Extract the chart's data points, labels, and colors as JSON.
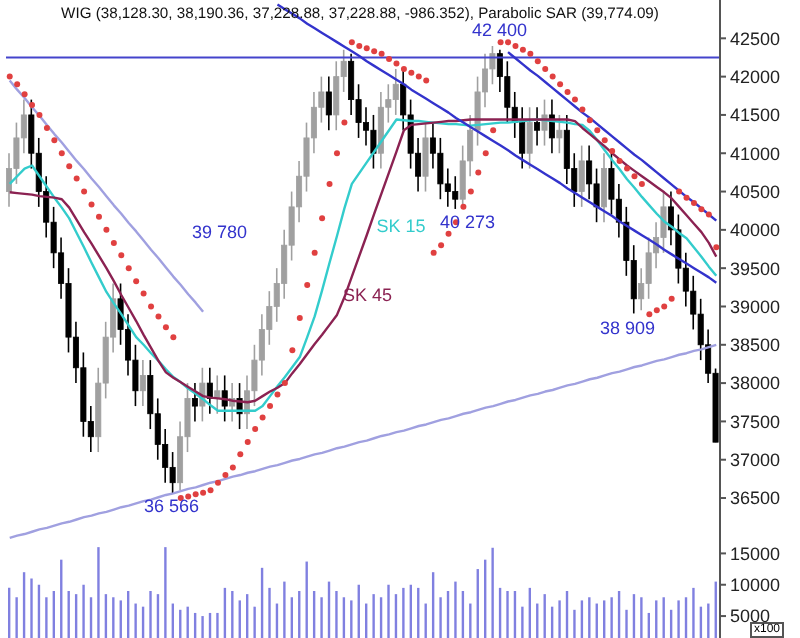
{
  "chart_data": [
    {
      "type": "candlestick",
      "title": "WIG (38,128.30, 38,190.36, 37,228.88, 37,228.88, -986.352), Parabolic SAR (39,774.09)",
      "colors": [
        "#a0a0a0",
        "#a0a0a0",
        "#a0a0a0",
        "#000000",
        "#000000",
        "#000000",
        "#000000",
        "#000000",
        "#000000",
        "#000000",
        "#000000",
        "#000000",
        "#a0a0a0",
        "#a0a0a0",
        "#a0a0a0",
        "#000000",
        "#000000",
        "#000000",
        "#a0a0a0",
        "#000000",
        "#000000",
        "#000000",
        "#000000",
        "#a0a0a0",
        "#a0a0a0",
        "#000000",
        "#a0a0a0",
        "#000000",
        "#a0a0a0",
        "#000000",
        "#a0a0a0",
        "#000000",
        "#a0a0a0",
        "#a0a0a0",
        "#a0a0a0",
        "#a0a0a0",
        "#a0a0a0",
        "#a0a0a0",
        "#a0a0a0",
        "#a0a0a0",
        "#a0a0a0",
        "#a0a0a0",
        "#a0a0a0",
        "#000000",
        "#a0a0a0",
        "#a0a0a0",
        "#000000",
        "#000000",
        "#000000",
        "#000000",
        "#a0a0a0",
        "#a0a0a0",
        "#a0a0a0",
        "#000000",
        "#000000",
        "#000000",
        "#a0a0a0",
        "#000000",
        "#000000",
        "#000000",
        "#000000",
        "#a0a0a0",
        "#a0a0a0",
        "#a0a0a0",
        "#a0a0a0",
        "#a0a0a0",
        "#000000",
        "#000000",
        "#000000",
        "#000000",
        "#a0a0a0",
        "#000000",
        "#a0a0a0",
        "#000000",
        "#a0a0a0",
        "#000000",
        "#000000",
        "#a0a0a0",
        "#000000",
        "#000000",
        "#a0a0a0",
        "#000000",
        "#000000",
        "#000000",
        "#000000",
        "#a0a0a0",
        "#a0a0a0",
        "#a0a0a0",
        "#a0a0a0",
        "#000000",
        "#000000",
        "#000000",
        "#000000",
        "#000000",
        "#000000",
        "#000000"
      ],
      "categories": [
        null,
        null,
        null,
        null,
        null,
        null,
        null,
        null,
        null,
        null,
        null,
        null,
        null,
        null,
        null,
        null,
        null,
        null,
        null,
        null,
        null,
        null,
        null,
        null,
        null,
        null,
        null,
        null,
        null,
        null,
        null,
        null,
        null,
        null,
        null,
        null,
        null,
        null,
        null,
        null,
        null,
        null,
        null,
        null,
        null,
        null,
        null,
        null,
        null,
        null,
        null,
        null,
        null,
        null,
        null,
        null,
        null,
        null,
        null,
        null,
        null,
        null,
        null,
        null,
        null,
        null,
        null,
        null,
        null,
        null,
        null,
        null,
        null,
        null,
        null,
        null,
        null,
        null,
        null,
        null,
        null,
        null,
        null,
        null,
        null,
        null,
        null,
        null,
        null,
        null,
        null,
        null,
        null,
        null,
        null,
        null
      ],
      "ohlc": [
        [
          40500,
          41000,
          40300,
          40800
        ],
        [
          40800,
          41400,
          40600,
          41200
        ],
        [
          41200,
          41700,
          41000,
          41500
        ],
        [
          41500,
          41700,
          40800,
          41000
        ],
        [
          41000,
          41200,
          40300,
          40500
        ],
        [
          40500,
          40700,
          39900,
          40100
        ],
        [
          40100,
          40300,
          39500,
          39700
        ],
        [
          39700,
          39900,
          39100,
          39300
        ],
        [
          39300,
          39500,
          38400,
          38600
        ],
        [
          38600,
          38800,
          38000,
          38200
        ],
        [
          38200,
          38400,
          37300,
          37500
        ],
        [
          37500,
          37700,
          37100,
          37300
        ],
        [
          37300,
          38200,
          37100,
          38000
        ],
        [
          38000,
          38800,
          37800,
          38600
        ],
        [
          38600,
          39300,
          38400,
          39100
        ],
        [
          39100,
          39300,
          38500,
          38700
        ],
        [
          38700,
          38900,
          38100,
          38300
        ],
        [
          38300,
          38500,
          37700,
          37900
        ],
        [
          37900,
          38300,
          37700,
          38100
        ],
        [
          38100,
          38300,
          37400,
          37600
        ],
        [
          37600,
          37800,
          37000,
          37200
        ],
        [
          37200,
          37400,
          36700,
          36900
        ],
        [
          36900,
          37100,
          36566,
          36700
        ],
        [
          36700,
          37500,
          36600,
          37300
        ],
        [
          37300,
          38000,
          37100,
          37800
        ],
        [
          37800,
          38000,
          37500,
          37700
        ],
        [
          37700,
          38200,
          37500,
          38000
        ],
        [
          38000,
          38200,
          37600,
          37800
        ],
        [
          37800,
          38100,
          37600,
          37900
        ],
        [
          37900,
          38100,
          37500,
          37700
        ],
        [
          37700,
          38000,
          37500,
          37800
        ],
        [
          37800,
          38000,
          37400,
          37600
        ],
        [
          37600,
          38100,
          37400,
          37900
        ],
        [
          37900,
          38500,
          37700,
          38300
        ],
        [
          38300,
          38900,
          38100,
          38700
        ],
        [
          38700,
          39200,
          38500,
          39000
        ],
        [
          39000,
          39500,
          38800,
          39300
        ],
        [
          39300,
          40000,
          39100,
          39800
        ],
        [
          39800,
          40500,
          39600,
          40300
        ],
        [
          40300,
          40900,
          40100,
          40700
        ],
        [
          40700,
          41400,
          40500,
          41200
        ],
        [
          41200,
          41800,
          41000,
          41600
        ],
        [
          41600,
          42000,
          41400,
          41800
        ],
        [
          41800,
          42000,
          41300,
          41500
        ],
        [
          41500,
          42200,
          41300,
          42000
        ],
        [
          42000,
          42350,
          41800,
          42200
        ],
        [
          42200,
          42300,
          41500,
          41700
        ],
        [
          41700,
          41900,
          41200,
          41400
        ],
        [
          41400,
          41600,
          41100,
          41300
        ],
        [
          41300,
          41500,
          40800,
          41000
        ],
        [
          41000,
          41800,
          40800,
          41600
        ],
        [
          41600,
          41900,
          41400,
          41700
        ],
        [
          41700,
          42100,
          41500,
          41900
        ],
        [
          41900,
          42100,
          41300,
          41500
        ],
        [
          41500,
          41700,
          40800,
          41000
        ],
        [
          41000,
          41200,
          40500,
          40700
        ],
        [
          40700,
          41400,
          40500,
          41200
        ],
        [
          41200,
          41400,
          40800,
          41000
        ],
        [
          41000,
          41200,
          40400,
          40600
        ],
        [
          40600,
          40800,
          40300,
          40500
        ],
        [
          40500,
          40700,
          40273,
          40400
        ],
        [
          40400,
          41100,
          40300,
          40900
        ],
        [
          40900,
          41500,
          40700,
          41300
        ],
        [
          41300,
          42000,
          41100,
          41800
        ],
        [
          41800,
          42300,
          41600,
          42100
        ],
        [
          42100,
          42400,
          41900,
          42300
        ],
        [
          42300,
          42350,
          41800,
          42000
        ],
        [
          42000,
          42200,
          41400,
          41600
        ],
        [
          41600,
          41800,
          41200,
          41400
        ],
        [
          41400,
          41600,
          40800,
          41000
        ],
        [
          41000,
          41600,
          40800,
          41400
        ],
        [
          41400,
          41600,
          41100,
          41300
        ],
        [
          41300,
          41700,
          41100,
          41500
        ],
        [
          41500,
          41700,
          41000,
          41200
        ],
        [
          41200,
          41500,
          41000,
          41300
        ],
        [
          41300,
          41500,
          40600,
          40800
        ],
        [
          40800,
          41000,
          40300,
          40500
        ],
        [
          40500,
          41100,
          40300,
          40900
        ],
        [
          40900,
          41100,
          40400,
          40600
        ],
        [
          40600,
          40800,
          40100,
          40300
        ],
        [
          40300,
          41000,
          40100,
          40800
        ],
        [
          40800,
          41000,
          40200,
          40400
        ],
        [
          40400,
          40600,
          39900,
          40100
        ],
        [
          40100,
          40300,
          39400,
          39600
        ],
        [
          39600,
          39800,
          38909,
          39100
        ],
        [
          39100,
          39500,
          38950,
          39300
        ],
        [
          39300,
          39900,
          39100,
          39700
        ],
        [
          39700,
          40100,
          39500,
          39900
        ],
        [
          39900,
          40500,
          39700,
          40300
        ],
        [
          40300,
          40500,
          39800,
          40000
        ],
        [
          40000,
          40200,
          39300,
          39500
        ],
        [
          39500,
          39700,
          39000,
          39200
        ],
        [
          39200,
          39400,
          38700,
          38900
        ],
        [
          38900,
          39100,
          38300,
          38500
        ],
        [
          38500,
          38700,
          38000,
          38128.3
        ],
        [
          38128.3,
          38190.36,
          37228.88,
          37228.88
        ]
      ],
      "series": [
        {
          "name": "SK 15",
          "type": "line",
          "color": "#33cccc",
          "values": [
            40600,
            40700,
            40800,
            40840,
            40700,
            40560,
            40420,
            40290,
            40150,
            39960,
            39770,
            39570,
            39380,
            39190,
            39040,
            38900,
            38750,
            38600,
            38500,
            38390,
            38290,
            38180,
            38080,
            38010,
            37930,
            37860,
            37790,
            37710,
            37640,
            37640,
            37640,
            37640,
            37640,
            37640,
            37700,
            37830,
            37960,
            38080,
            38210,
            38340,
            38600,
            38870,
            39210,
            39570,
            39920,
            40280,
            40600,
            40740,
            40880,
            41020,
            41160,
            41300,
            41440,
            41430,
            41420,
            41420,
            41410,
            41400,
            41390,
            41380,
            41380,
            41370,
            41360,
            41370,
            41380,
            41390,
            41400,
            41400,
            41410,
            41420,
            41430,
            41440,
            41430,
            41420,
            41410,
            41400,
            41380,
            41370,
            41290,
            41170,
            41040,
            40910,
            40790,
            40660,
            40550,
            40430,
            40320,
            40210,
            40110,
            40040,
            39960,
            39890,
            39770,
            39650,
            39520,
            39400
          ]
        },
        {
          "name": "SK 45",
          "type": "line",
          "color": "#8b2252",
          "values": [
            40490,
            40480,
            40470,
            40460,
            40440,
            40430,
            40420,
            40400,
            40290,
            40130,
            39970,
            39820,
            39660,
            39500,
            39330,
            39150,
            38980,
            38810,
            38630,
            38460,
            38290,
            38140,
            38070,
            38010,
            37950,
            37890,
            37830,
            37810,
            37800,
            37790,
            37770,
            37760,
            37750,
            37770,
            37830,
            37890,
            37940,
            38000,
            38130,
            38250,
            38380,
            38510,
            38630,
            38760,
            38890,
            39120,
            39390,
            39660,
            39930,
            40210,
            40480,
            40750,
            41020,
            41300,
            41370,
            41380,
            41390,
            41400,
            41410,
            41420,
            41420,
            41430,
            41440,
            41440,
            41440,
            41440,
            41440,
            41440,
            41440,
            41440,
            41440,
            41440,
            41440,
            41440,
            41440,
            41440,
            41420,
            41330,
            41250,
            41170,
            41090,
            41000,
            40920,
            40840,
            40770,
            40700,
            40630,
            40560,
            40490,
            40410,
            40300,
            40190,
            40080,
            39970,
            39830,
            39650
          ]
        },
        {
          "type": "scatter",
          "marker": "circle",
          "color": "#e04040",
          "values": [
            42000,
            41900,
            41770,
            41630,
            41500,
            41330,
            41170,
            41000,
            40830,
            40670,
            40500,
            40330,
            40170,
            40000,
            39830,
            39670,
            39500,
            39330,
            39170,
            39000,
            38870,
            38730,
            38600,
            36500,
            36520,
            36550,
            36570,
            36600,
            36700,
            36800,
            36900,
            37070,
            37230,
            37400,
            37550,
            37700,
            37850,
            38000,
            38430,
            38850,
            39280,
            39700,
            40150,
            40600,
            41000,
            41400,
            42450,
            42400,
            42370,
            42330,
            42300,
            42230,
            42170,
            42100,
            42050,
            42000,
            41950,
            39700,
            39800,
            39950,
            40100,
            40300,
            40500,
            40750,
            41000,
            41300,
            42450,
            42450,
            42400,
            42350,
            42300,
            42200,
            42100,
            42000,
            41900,
            41800,
            41700,
            41570,
            41430,
            41300,
            41170,
            41030,
            40900,
            40800,
            40700,
            40600,
            38900,
            38950,
            39000,
            39100,
            40500,
            40420,
            40350,
            40270,
            40200,
            39774.09
          ]
        },
        {
          "type": "line",
          "color": "#a0a0e0",
          "values": [
            41950,
            41830,
            41720,
            41600,
            41490,
            41370,
            41250,
            41140,
            41020,
            40900,
            40790,
            40670,
            40560,
            40440,
            40320,
            40210,
            40090,
            39980,
            39860,
            39740,
            39630,
            39510,
            39390,
            39280,
            39160,
            39050,
            38930,
            null,
            null,
            null,
            null,
            null,
            null,
            null,
            null,
            null,
            null,
            null,
            null,
            null,
            null,
            null,
            null,
            null,
            null,
            null,
            null,
            null,
            null,
            null,
            null,
            null,
            null,
            null,
            null,
            null,
            null,
            null,
            null,
            null,
            null,
            null,
            null,
            null,
            null,
            null,
            null,
            null,
            null,
            null,
            null,
            null,
            null,
            null,
            null,
            null,
            null,
            null,
            null,
            null,
            null,
            null,
            null,
            null,
            null,
            null,
            null,
            null,
            null,
            null,
            null,
            null,
            null,
            null,
            null,
            null
          ]
        },
        {
          "type": "line",
          "color": "#a0a0e0",
          "values": [
            35980,
            36010,
            36030,
            36060,
            36090,
            36110,
            36140,
            36170,
            36190,
            36220,
            36250,
            36270,
            36300,
            36320,
            36350,
            36380,
            36400,
            36430,
            36460,
            36480,
            36510,
            36540,
            36560,
            36590,
            36620,
            36640,
            36670,
            36700,
            36720,
            36750,
            36780,
            36800,
            36830,
            36850,
            36880,
            36910,
            36930,
            36960,
            36990,
            37010,
            37040,
            37070,
            37090,
            37120,
            37150,
            37170,
            37200,
            37230,
            37250,
            37280,
            37310,
            37330,
            37360,
            37380,
            37410,
            37440,
            37460,
            37490,
            37520,
            37540,
            37570,
            37600,
            37620,
            37650,
            37680,
            37700,
            37730,
            37760,
            37780,
            37810,
            37840,
            37860,
            37890,
            37910,
            37940,
            37970,
            37990,
            38020,
            38050,
            38070,
            38100,
            38130,
            38150,
            38180,
            38210,
            38230,
            38260,
            38290,
            38310,
            38340,
            38370,
            38390,
            38420,
            38440,
            38470,
            38500
          ]
        },
        {
          "type": "line",
          "color": "#3333cc",
          "values": [
            null,
            null,
            null,
            null,
            null,
            null,
            null,
            null,
            null,
            null,
            null,
            null,
            null,
            null,
            null,
            null,
            null,
            null,
            null,
            null,
            null,
            null,
            null,
            null,
            null,
            null,
            null,
            null,
            null,
            null,
            null,
            null,
            null,
            null,
            null,
            null,
            42940,
            42880,
            42820,
            42760,
            42690,
            42630,
            42570,
            42510,
            42450,
            42390,
            42330,
            42270,
            42200,
            42140,
            42080,
            42020,
            41960,
            41900,
            41830,
            41770,
            41710,
            41650,
            41590,
            41530,
            41460,
            41400,
            41340,
            41280,
            41220,
            41160,
            41100,
            41040,
            40970,
            40910,
            40850,
            40790,
            40730,
            40670,
            40610,
            40540,
            40480,
            40420,
            40360,
            40300,
            40240,
            40180,
            40110,
            40050,
            39990,
            39930,
            39870,
            39810,
            39740,
            39680,
            39620,
            39560,
            39500,
            39440,
            39380,
            39310
          ]
        },
        {
          "type": "line",
          "color": "#3333cc",
          "values": [
            null,
            null,
            null,
            null,
            null,
            null,
            null,
            null,
            null,
            null,
            null,
            null,
            null,
            null,
            null,
            null,
            null,
            null,
            null,
            null,
            null,
            null,
            null,
            null,
            null,
            null,
            null,
            null,
            null,
            null,
            null,
            null,
            null,
            null,
            null,
            null,
            null,
            null,
            null,
            null,
            null,
            null,
            null,
            null,
            null,
            null,
            null,
            null,
            null,
            null,
            null,
            null,
            null,
            null,
            null,
            null,
            null,
            null,
            null,
            null,
            null,
            null,
            null,
            null,
            null,
            null,
            null,
            42320,
            42240,
            42160,
            42080,
            42010,
            41930,
            41850,
            41770,
            41690,
            41610,
            41530,
            41460,
            41380,
            41300,
            41220,
            41140,
            41060,
            40980,
            40910,
            40830,
            40750,
            40670,
            40590,
            40510,
            40430,
            40360,
            40280,
            40200,
            40120
          ]
        }
      ],
      "ref_lines": [
        {
          "axis": "y",
          "value": 42250,
          "color": "#4444cc"
        }
      ],
      "annotations": [
        {
          "text": "42 400",
          "y": 42400
        },
        {
          "text": "40 273",
          "y": 40273
        },
        {
          "text": "38 909",
          "y": 38909
        },
        {
          "text": "36 566",
          "y": 36566
        },
        "39 780"
      ],
      "ylim": [
        35900,
        43000
      ],
      "yticks": [
        36500,
        37000,
        37500,
        38000,
        38500,
        39000,
        39500,
        40000,
        40500,
        41000,
        41500,
        42000,
        42500
      ],
      "tick_labels": "y"
    },
    {
      "type": "bar",
      "color": "#8080e0",
      "categories": [
        null,
        null,
        null,
        null,
        null,
        null,
        null,
        null,
        null,
        null,
        null,
        null,
        null,
        null,
        null,
        null,
        null,
        null,
        null,
        null,
        null,
        null,
        null,
        null,
        null,
        null,
        null,
        null,
        null,
        null,
        null,
        null,
        null,
        null,
        null,
        null,
        null,
        null,
        null,
        null,
        null,
        null,
        null,
        null,
        null,
        null,
        null,
        null,
        null,
        null,
        null,
        null,
        null,
        null,
        null,
        null,
        null,
        null,
        null,
        null,
        null,
        null,
        null,
        null,
        null,
        null,
        null,
        null,
        null,
        null,
        null,
        null,
        null,
        null,
        null,
        null,
        null,
        null,
        null,
        null,
        null,
        null,
        null,
        null,
        null,
        null,
        null,
        null,
        null,
        null,
        null,
        null,
        null,
        null,
        null,
        null
      ],
      "values": [
        9500,
        8000,
        12000,
        11000,
        10000,
        8000,
        9000,
        14000,
        9000,
        8500,
        10000,
        8000,
        16000,
        8500,
        8000,
        7500,
        9000,
        7000,
        6500,
        9000,
        8500,
        16000,
        7000,
        6000,
        6500,
        5500,
        5000,
        5500,
        5500,
        9500,
        9000,
        7500,
        8500,
        6500,
        12700,
        9500,
        7000,
        10500,
        8000,
        9000,
        13700,
        9000,
        8000,
        10500,
        9000,
        8000,
        7500,
        10000,
        7000,
        8500,
        8000,
        10000,
        8500,
        9500,
        10000,
        9500,
        7000,
        12000,
        8000,
        9000,
        10500,
        9000,
        7000,
        12500,
        14000,
        15900,
        9500,
        9000,
        9000,
        6500,
        9500,
        7000,
        8500,
        6500,
        7500,
        9000,
        6000,
        7500,
        8000,
        7000,
        7500,
        8000,
        9000,
        6000,
        8500,
        8000,
        5500,
        7500,
        8000,
        6000,
        7500,
        8000,
        9500,
        6500,
        7000,
        10500
      ],
      "annotations": [
        "x100"
      ],
      "ylim": [
        1500,
        16500
      ],
      "yticks": [
        5000,
        10000,
        15000
      ],
      "tick_labels": "y"
    }
  ]
}
